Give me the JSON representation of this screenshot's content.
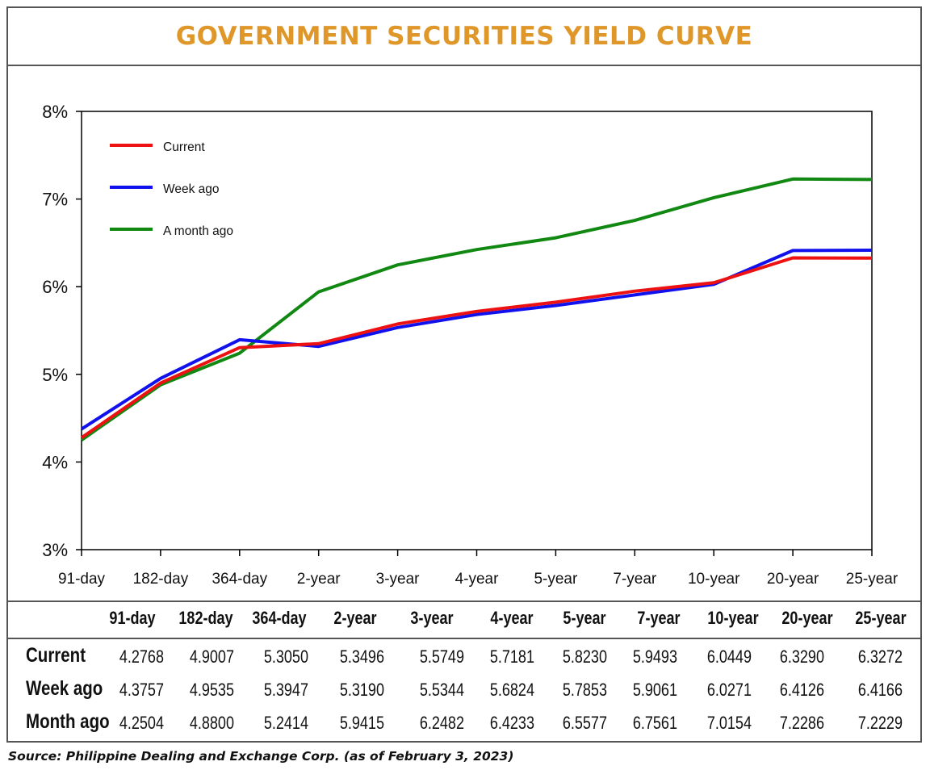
{
  "title": "GOVERNMENT SECURITIES YIELD CURVE",
  "source": "Source: Philippine Dealing and Exchange Corp. (as of February 3, 2023)",
  "chart_data": {
    "type": "line",
    "categories": [
      "91-day",
      "182-day",
      "364-day",
      "2-year",
      "3-year",
      "4-year",
      "5-year",
      "7-year",
      "10-year",
      "20-year",
      "25-year"
    ],
    "y_ticks": [
      "3%",
      "4%",
      "5%",
      "6%",
      "7%",
      "8%"
    ],
    "ylim": [
      3,
      8
    ],
    "grid": false,
    "legend_position": "top-left",
    "series": [
      {
        "name": "Current",
        "color": "#ee1111",
        "values": [
          4.2768,
          4.9007,
          5.305,
          5.3496,
          5.5749,
          5.7181,
          5.823,
          5.9493,
          6.0449,
          6.329,
          6.3272
        ]
      },
      {
        "name": "Week ago",
        "color": "#1111ee",
        "values": [
          4.3757,
          4.9535,
          5.3947,
          5.319,
          5.5344,
          5.6824,
          5.7853,
          5.9061,
          6.0271,
          6.4126,
          6.4166
        ]
      },
      {
        "name": "A month ago",
        "color": "#118811",
        "values": [
          4.2504,
          4.88,
          5.2414,
          5.9415,
          6.2482,
          6.4233,
          6.5577,
          6.7561,
          7.0154,
          7.2286,
          7.2229
        ]
      }
    ]
  },
  "table": {
    "headers": [
      "91-day",
      "182-day",
      "364-day",
      "2-year",
      "3-year",
      "4-year",
      "5-year",
      "7-year",
      "10-year",
      "20-year",
      "25-year"
    ],
    "rows": [
      {
        "label": "Current",
        "values": [
          "4.2768",
          "4.9007",
          "5.3050",
          "5.3496",
          "5.5749",
          "5.7181",
          "5.8230",
          "5.9493",
          "6.0449",
          "6.3290",
          "6.3272"
        ]
      },
      {
        "label": "Week ago",
        "values": [
          "4.3757",
          "4.9535",
          "5.3947",
          "5.3190",
          "5.5344",
          "5.6824",
          "5.7853",
          "5.9061",
          "6.0271",
          "6.4126",
          "6.4166"
        ]
      },
      {
        "label": "Month ago",
        "values": [
          "4.2504",
          "4.8800",
          "5.2414",
          "5.9415",
          "6.2482",
          "6.4233",
          "6.5577",
          "6.7561",
          "7.0154",
          "7.2286",
          "7.2229"
        ]
      }
    ]
  }
}
